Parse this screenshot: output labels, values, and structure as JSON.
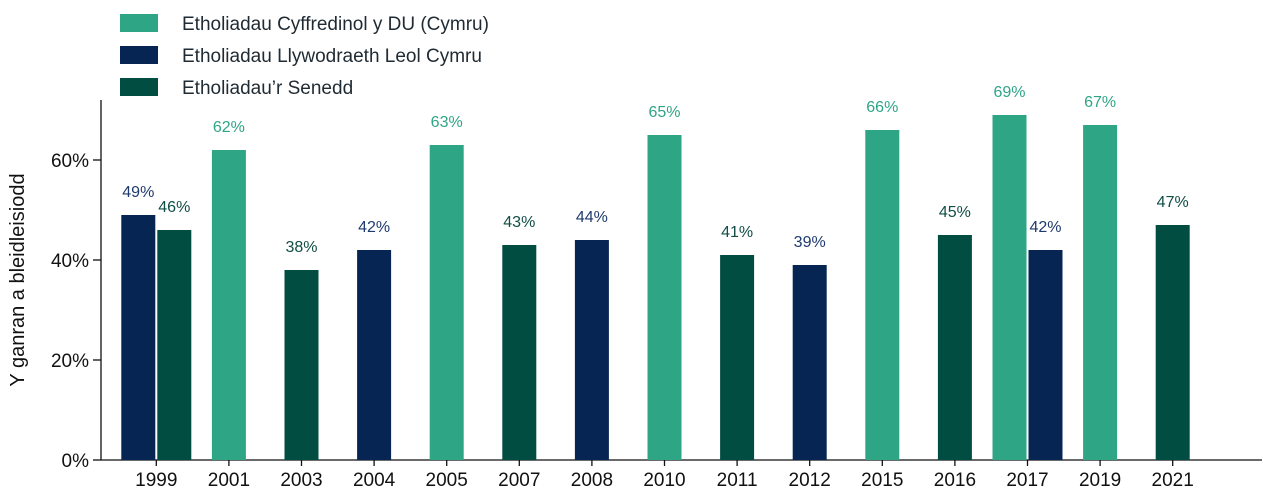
{
  "chart_data": {
    "type": "bar",
    "title": "",
    "xlabel": "",
    "ylabel": "Y ganran a bleidleisiodd",
    "ylim": [
      0,
      72
    ],
    "yticks": [
      {
        "value": 0,
        "label": "0%"
      },
      {
        "value": 20,
        "label": "20%"
      },
      {
        "value": 40,
        "label": "40%"
      },
      {
        "value": 60,
        "label": "60%"
      }
    ],
    "grid": false,
    "legend_position": "top-left",
    "series": [
      {
        "name": "Etholiadau Cyffredinol y DU (Cymru)",
        "color": "#2ea585",
        "label_color": "#2ea585"
      },
      {
        "name": "Etholiadau Llywodraeth Leol Cymru",
        "color": "#062552",
        "label_color": "#1e3a6e"
      },
      {
        "name": "Etholiadau’r Senedd",
        "color": "#014d42",
        "label_color": "#0f4d45"
      }
    ],
    "groups": [
      {
        "category": "1999",
        "bars": [
          {
            "series": 1,
            "value": 49,
            "label": "49%"
          },
          {
            "series": 2,
            "value": 46,
            "label": "46%"
          }
        ]
      },
      {
        "category": "2001",
        "bars": [
          {
            "series": 0,
            "value": 62,
            "label": "62%"
          }
        ]
      },
      {
        "category": "2003",
        "bars": [
          {
            "series": 2,
            "value": 38,
            "label": "38%"
          }
        ]
      },
      {
        "category": "2004",
        "bars": [
          {
            "series": 1,
            "value": 42,
            "label": "42%"
          }
        ]
      },
      {
        "category": "2005",
        "bars": [
          {
            "series": 0,
            "value": 63,
            "label": "63%"
          }
        ]
      },
      {
        "category": "2007",
        "bars": [
          {
            "series": 2,
            "value": 43,
            "label": "43%"
          }
        ]
      },
      {
        "category": "2008",
        "bars": [
          {
            "series": 1,
            "value": 44,
            "label": "44%"
          }
        ]
      },
      {
        "category": "2010",
        "bars": [
          {
            "series": 0,
            "value": 65,
            "label": "65%"
          }
        ]
      },
      {
        "category": "2011",
        "bars": [
          {
            "series": 2,
            "value": 41,
            "label": "41%"
          }
        ]
      },
      {
        "category": "2012",
        "bars": [
          {
            "series": 1,
            "value": 39,
            "label": "39%"
          }
        ]
      },
      {
        "category": "2015",
        "bars": [
          {
            "series": 0,
            "value": 66,
            "label": "66%"
          }
        ]
      },
      {
        "category": "2016",
        "bars": [
          {
            "series": 2,
            "value": 45,
            "label": "45%"
          }
        ]
      },
      {
        "category": "2017",
        "bars": [
          {
            "series": 0,
            "value": 69,
            "label": "69%"
          },
          {
            "series": 1,
            "value": 42,
            "label": "42%"
          }
        ]
      },
      {
        "category": "2019",
        "bars": [
          {
            "series": 0,
            "value": 67,
            "label": "67%"
          }
        ]
      },
      {
        "category": "2021",
        "bars": [
          {
            "series": 2,
            "value": 47,
            "label": "47%"
          }
        ]
      }
    ]
  }
}
